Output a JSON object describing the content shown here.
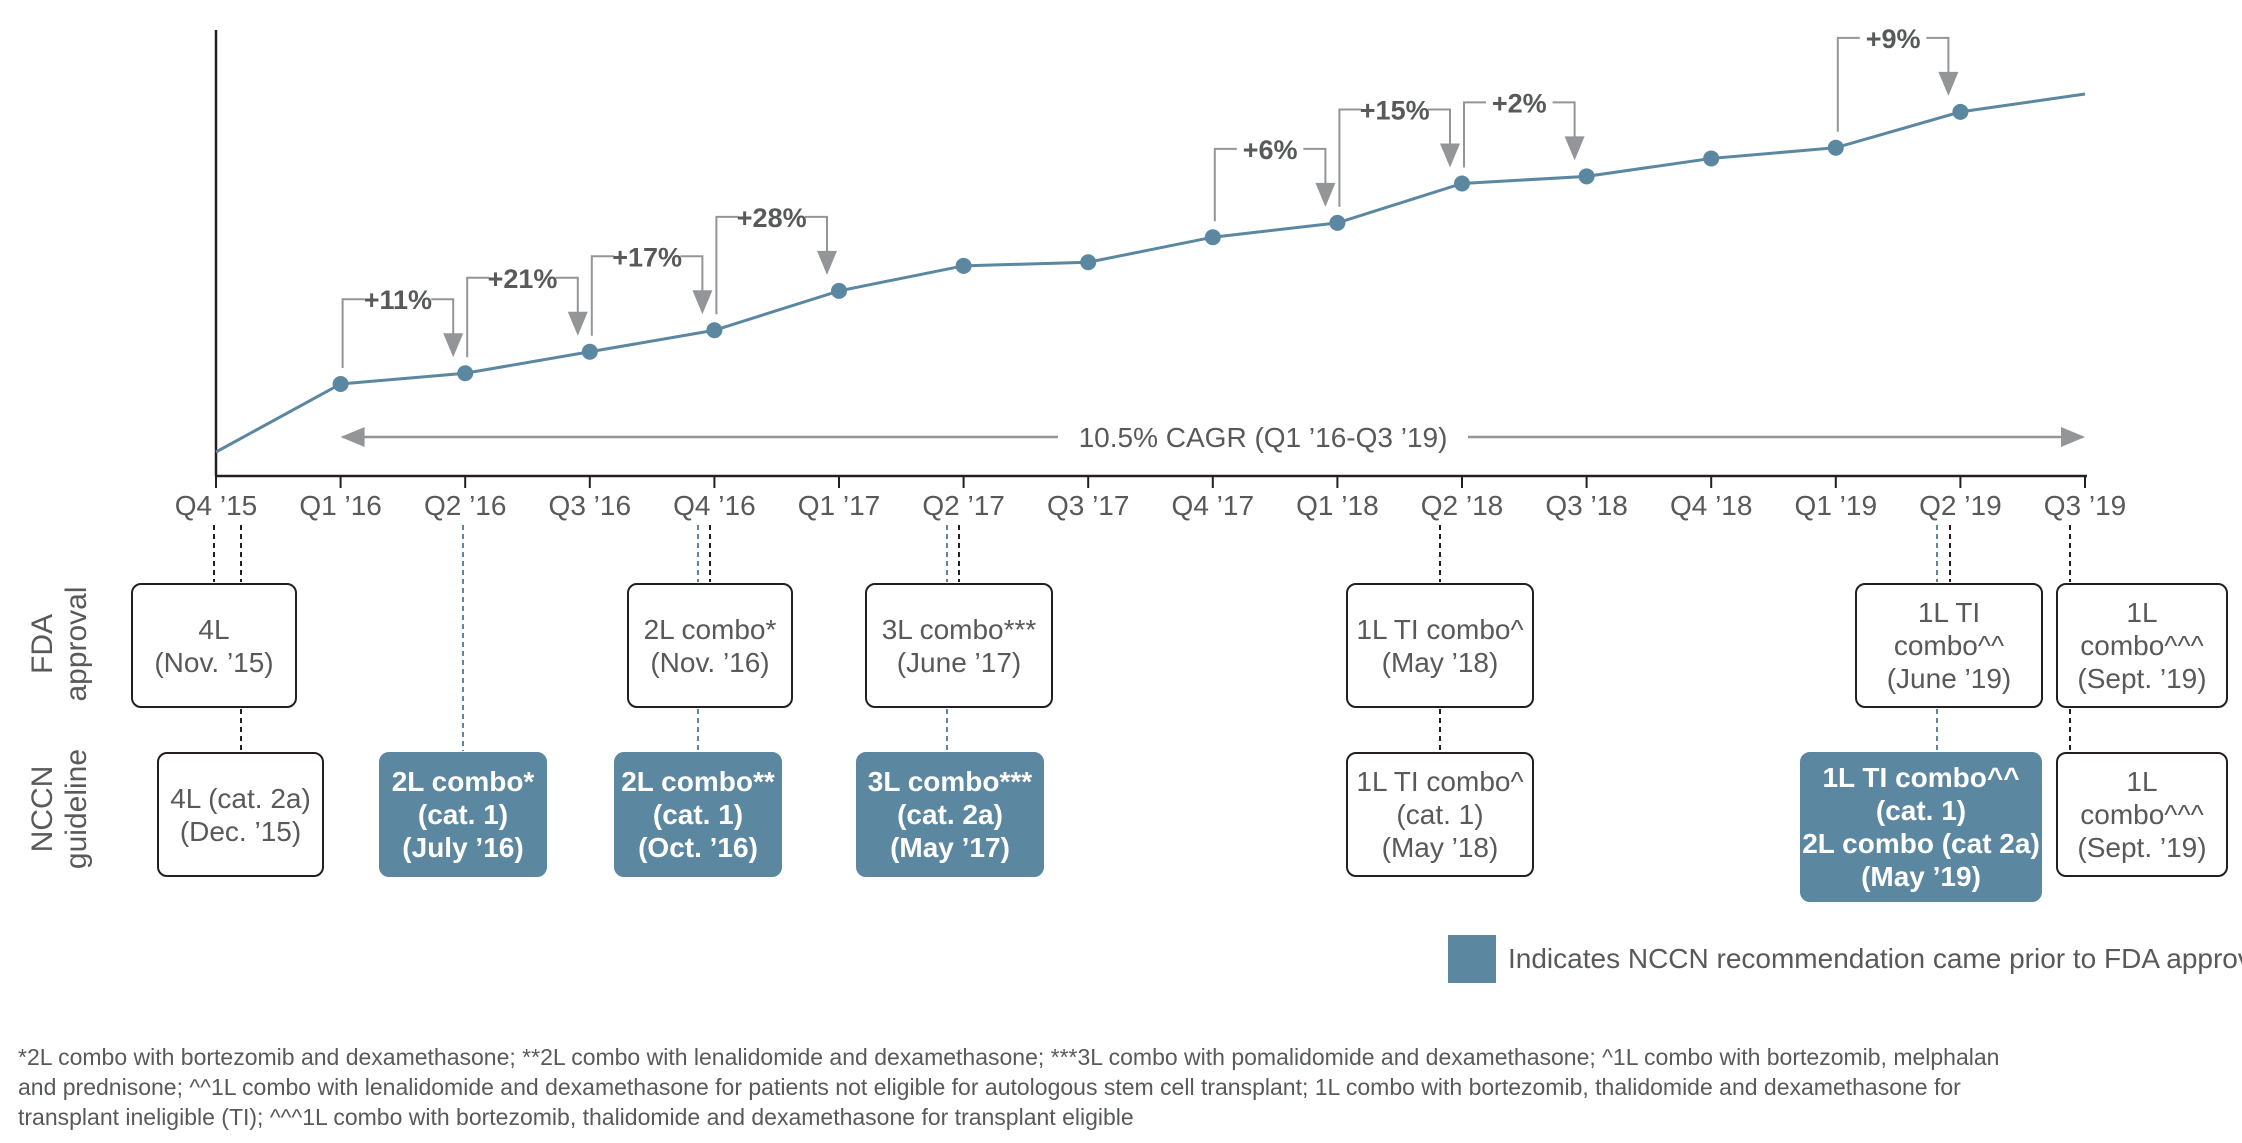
{
  "chart_data": {
    "type": "line",
    "x": [
      "Q4 '15",
      "Q1 '16",
      "Q2 '16",
      "Q3 '16",
      "Q4 '16",
      "Q1 '17",
      "Q2 '17",
      "Q3 '17",
      "Q4 '17",
      "Q1 '18",
      "Q2 '18",
      "Q3 '18",
      "Q4 '18",
      "Q1 '19",
      "Q2 '19",
      "Q3 '19"
    ],
    "values": [
      0,
      19,
      22,
      28,
      34,
      45,
      52,
      53,
      60,
      64,
      75,
      77,
      82,
      85,
      95,
      100
    ],
    "marker_indices": [
      1,
      2,
      3,
      4,
      5,
      6,
      7,
      8,
      9,
      10,
      11,
      12,
      13,
      14
    ],
    "y_axis_labels": false,
    "grid": false,
    "cagr_label": "10.5% CAGR (Q1 ’16-Q3 ’19)",
    "growth_annotations": [
      {
        "label": "+11%",
        "from": 1,
        "to": 2
      },
      {
        "label": "+21%",
        "from": 2,
        "to": 3
      },
      {
        "label": "+17%",
        "from": 3,
        "to": 4
      },
      {
        "label": "+28%",
        "from": 4,
        "to": 5
      },
      {
        "label": "+6%",
        "from": 8,
        "to": 9
      },
      {
        "label": "+15%",
        "from": 9,
        "to": 10
      },
      {
        "label": "+2%",
        "from": 10,
        "to": 11
      },
      {
        "label": "+9%",
        "from": 13,
        "to": 14
      }
    ]
  },
  "tick_labels": [
    "Q4 ’15",
    "Q1 ’16",
    "Q2 ’16",
    "Q3 ’16",
    "Q4 ’16",
    "Q1 ’17",
    "Q2 ’17",
    "Q3 ’17",
    "Q4 ’17",
    "Q1 ’18",
    "Q2 ’18",
    "Q3 ’18",
    "Q4 ’18",
    "Q1 ’19",
    "Q2 ’19",
    "Q3 ’19"
  ],
  "rows": {
    "fda_line1": "FDA",
    "fda_line2": "approval",
    "nccn_line1": "NCCN",
    "nccn_line2": "guideline"
  },
  "fda_boxes": [
    {
      "lines": [
        "4L",
        "(Nov. ’15)"
      ]
    },
    {
      "lines": [
        "2L combo*",
        "(Nov. ’16)"
      ]
    },
    {
      "lines": [
        "3L combo***",
        "(June ’17)"
      ]
    },
    {
      "lines": [
        "1L TI combo^",
        "(May ’18)"
      ]
    },
    {
      "lines": [
        "1L TI",
        "combo^^",
        "(June ’19)"
      ]
    },
    {
      "lines": [
        "1L",
        "combo^^^",
        "(Sept. ’19)"
      ]
    }
  ],
  "nccn_boxes": [
    {
      "lines": [
        "4L (cat. 2a)",
        "(Dec. ’15)"
      ],
      "prior_to_fda": false
    },
    {
      "lines": [
        "2L combo*",
        "(cat. 1)",
        "(July ’16)"
      ],
      "prior_to_fda": true
    },
    {
      "lines": [
        "2L combo**",
        "(cat. 1)",
        "(Oct. ’16)"
      ],
      "prior_to_fda": true
    },
    {
      "lines": [
        "3L combo***",
        "(cat. 2a)",
        "(May ’17)"
      ],
      "prior_to_fda": true
    },
    {
      "lines": [
        "1L TI combo^",
        "(cat. 1)",
        "(May ’18)"
      ],
      "prior_to_fda": false
    },
    {
      "lines": [
        "1L TI combo^^",
        "(cat. 1)",
        "2L combo (cat 2a)",
        "(May ’19)"
      ],
      "prior_to_fda": true
    },
    {
      "lines": [
        "1L",
        "combo^^^",
        "(Sept. ’19)"
      ],
      "prior_to_fda": false
    }
  ],
  "legend": {
    "text": "Indicates NCCN recommendation came prior to FDA approval",
    "color": "#5b87a1"
  },
  "footnote": [
    "*2L combo with bortezomib and dexamethasone; **2L combo with lenalidomide and dexamethasone; ***3L combo with pomalidomide and dexamethasone; ^1L combo with bortezomib, melphalan",
    "and prednisone; ^^1L combo with lenalidomide and dexamethasone for patients not eligible for autologous stem cell transplant; 1L combo with bortezomib, thalidomide and dexamethasone for",
    "transplant ineligible (TI); ^^^1L combo with bortezomib, thalidomide and dexamethasone for transplant eligible"
  ],
  "colors": {
    "line": "#5b87a1",
    "marker": "#5b87a1",
    "arrow": "#939598",
    "text": "#58595b",
    "filled_box": "#5b87a1"
  }
}
